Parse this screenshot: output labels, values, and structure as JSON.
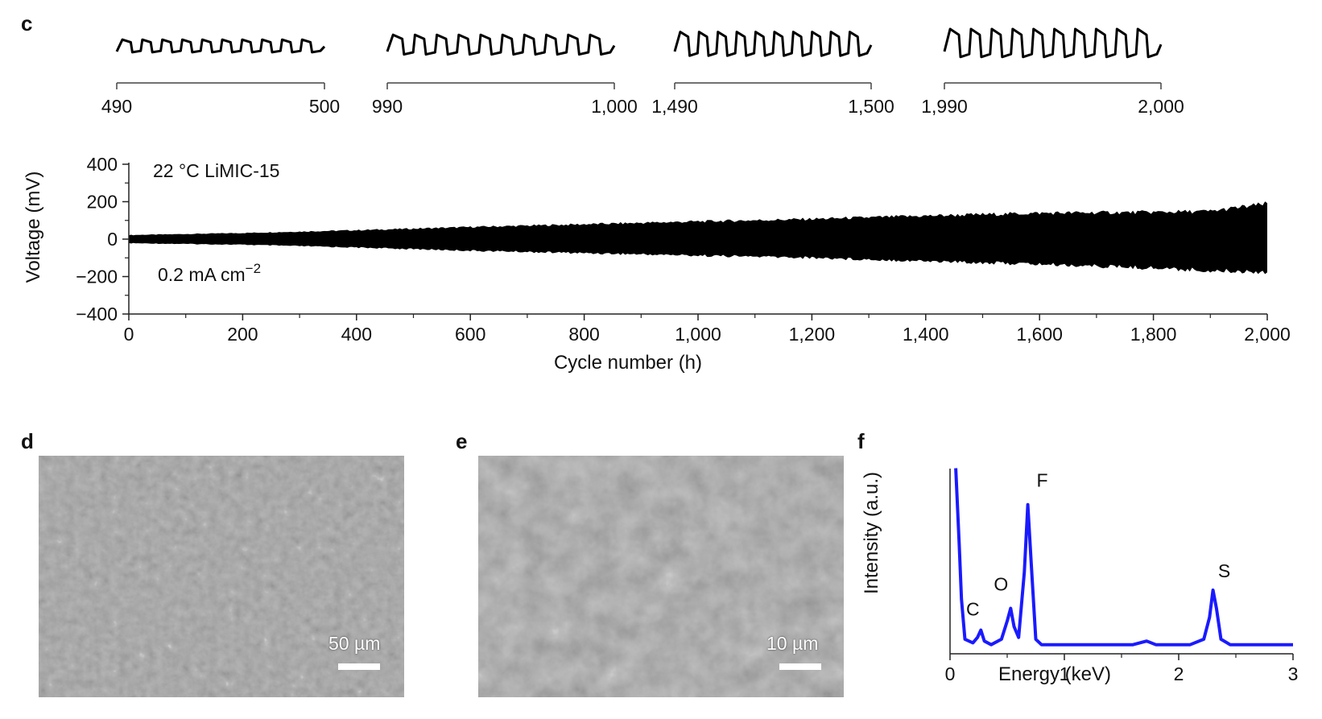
{
  "panels": {
    "c": "c",
    "d": "d",
    "e": "e",
    "f": "f"
  },
  "chart_data": [
    {
      "type": "line",
      "panel": "c-insets",
      "insets": [
        {
          "x_range": [
            490,
            500
          ],
          "tick_labels": [
            "490",
            "500"
          ],
          "amplitude": 0.45
        },
        {
          "x_range": [
            990,
            1000
          ],
          "tick_labels": [
            "990",
            "1,000"
          ],
          "amplitude": 0.7
        },
        {
          "x_range": [
            1490,
            1500
          ],
          "tick_labels": [
            "1,490",
            "1,500"
          ],
          "amplitude": 0.85
        },
        {
          "x_range": [
            1990,
            2000
          ],
          "tick_labels": [
            "1,990",
            "2,000"
          ],
          "amplitude": 1.0
        }
      ]
    },
    {
      "type": "line",
      "panel": "c",
      "xlabel": "Cycle number (h)",
      "ylabel": "Voltage (mV)",
      "xlim": [
        0,
        2000
      ],
      "ylim": [
        -400,
        400
      ],
      "xticks": [
        0,
        200,
        400,
        600,
        800,
        1000,
        1200,
        1400,
        1600,
        1800,
        2000
      ],
      "xtick_labels": [
        "0",
        "200",
        "400",
        "600",
        "800",
        "1,000",
        "1,200",
        "1,400",
        "1,600",
        "1,800",
        "2,000"
      ],
      "yticks": [
        -400,
        -200,
        0,
        200,
        400
      ],
      "ytick_labels": [
        "−400",
        "−200",
        "0",
        "200",
        "400"
      ],
      "annotations": {
        "temperature": "22 °C  LiMIC-15",
        "current": "0.2 mA cm",
        "current_sup": "−2"
      },
      "envelope": {
        "x": [
          0,
          200,
          400,
          600,
          800,
          1000,
          1200,
          1400,
          1600,
          1800,
          1900,
          2000
        ],
        "upper": [
          22,
          33,
          48,
          65,
          80,
          95,
          108,
          125,
          140,
          145,
          150,
          190
        ],
        "lower": [
          -22,
          -30,
          -45,
          -62,
          -75,
          -88,
          -100,
          -118,
          -135,
          -155,
          -170,
          -175
        ]
      }
    },
    {
      "type": "line",
      "panel": "f",
      "xlabel": "Energy (keV)",
      "ylabel": "Intensity (a.u.)",
      "xlim": [
        0,
        3
      ],
      "xticks": [
        0,
        1,
        2,
        3
      ],
      "xtick_labels": [
        "0",
        "1",
        "2",
        "3"
      ],
      "color": "#1a1aff",
      "series": [
        {
          "values": [
            [
              0.05,
              1.02
            ],
            [
              0.08,
              0.6
            ],
            [
              0.1,
              0.3
            ],
            [
              0.13,
              0.08
            ],
            [
              0.2,
              0.06
            ],
            [
              0.24,
              0.09
            ],
            [
              0.27,
              0.13
            ],
            [
              0.3,
              0.07
            ],
            [
              0.36,
              0.05
            ],
            [
              0.45,
              0.08
            ],
            [
              0.5,
              0.18
            ],
            [
              0.53,
              0.25
            ],
            [
              0.56,
              0.15
            ],
            [
              0.6,
              0.09
            ],
            [
              0.65,
              0.45
            ],
            [
              0.68,
              0.82
            ],
            [
              0.71,
              0.5
            ],
            [
              0.75,
              0.08
            ],
            [
              0.8,
              0.05
            ],
            [
              1.0,
              0.05
            ],
            [
              1.3,
              0.05
            ],
            [
              1.6,
              0.05
            ],
            [
              1.72,
              0.07
            ],
            [
              1.8,
              0.05
            ],
            [
              2.1,
              0.05
            ],
            [
              2.22,
              0.08
            ],
            [
              2.27,
              0.2
            ],
            [
              2.3,
              0.35
            ],
            [
              2.33,
              0.25
            ],
            [
              2.37,
              0.08
            ],
            [
              2.45,
              0.05
            ],
            [
              2.8,
              0.05
            ],
            [
              3.0,
              0.05
            ]
          ]
        }
      ],
      "peaks": [
        {
          "label": "C",
          "x": 0.27,
          "y": 0.13
        },
        {
          "label": "O",
          "x": 0.53,
          "y": 0.25
        },
        {
          "label": "F",
          "x": 0.68,
          "y": 0.82
        },
        {
          "label": "S",
          "x": 2.3,
          "y": 0.35
        }
      ]
    }
  ],
  "sem": {
    "d": {
      "scale_label": "50 µm"
    },
    "e": {
      "scale_label": "10 µm"
    }
  }
}
